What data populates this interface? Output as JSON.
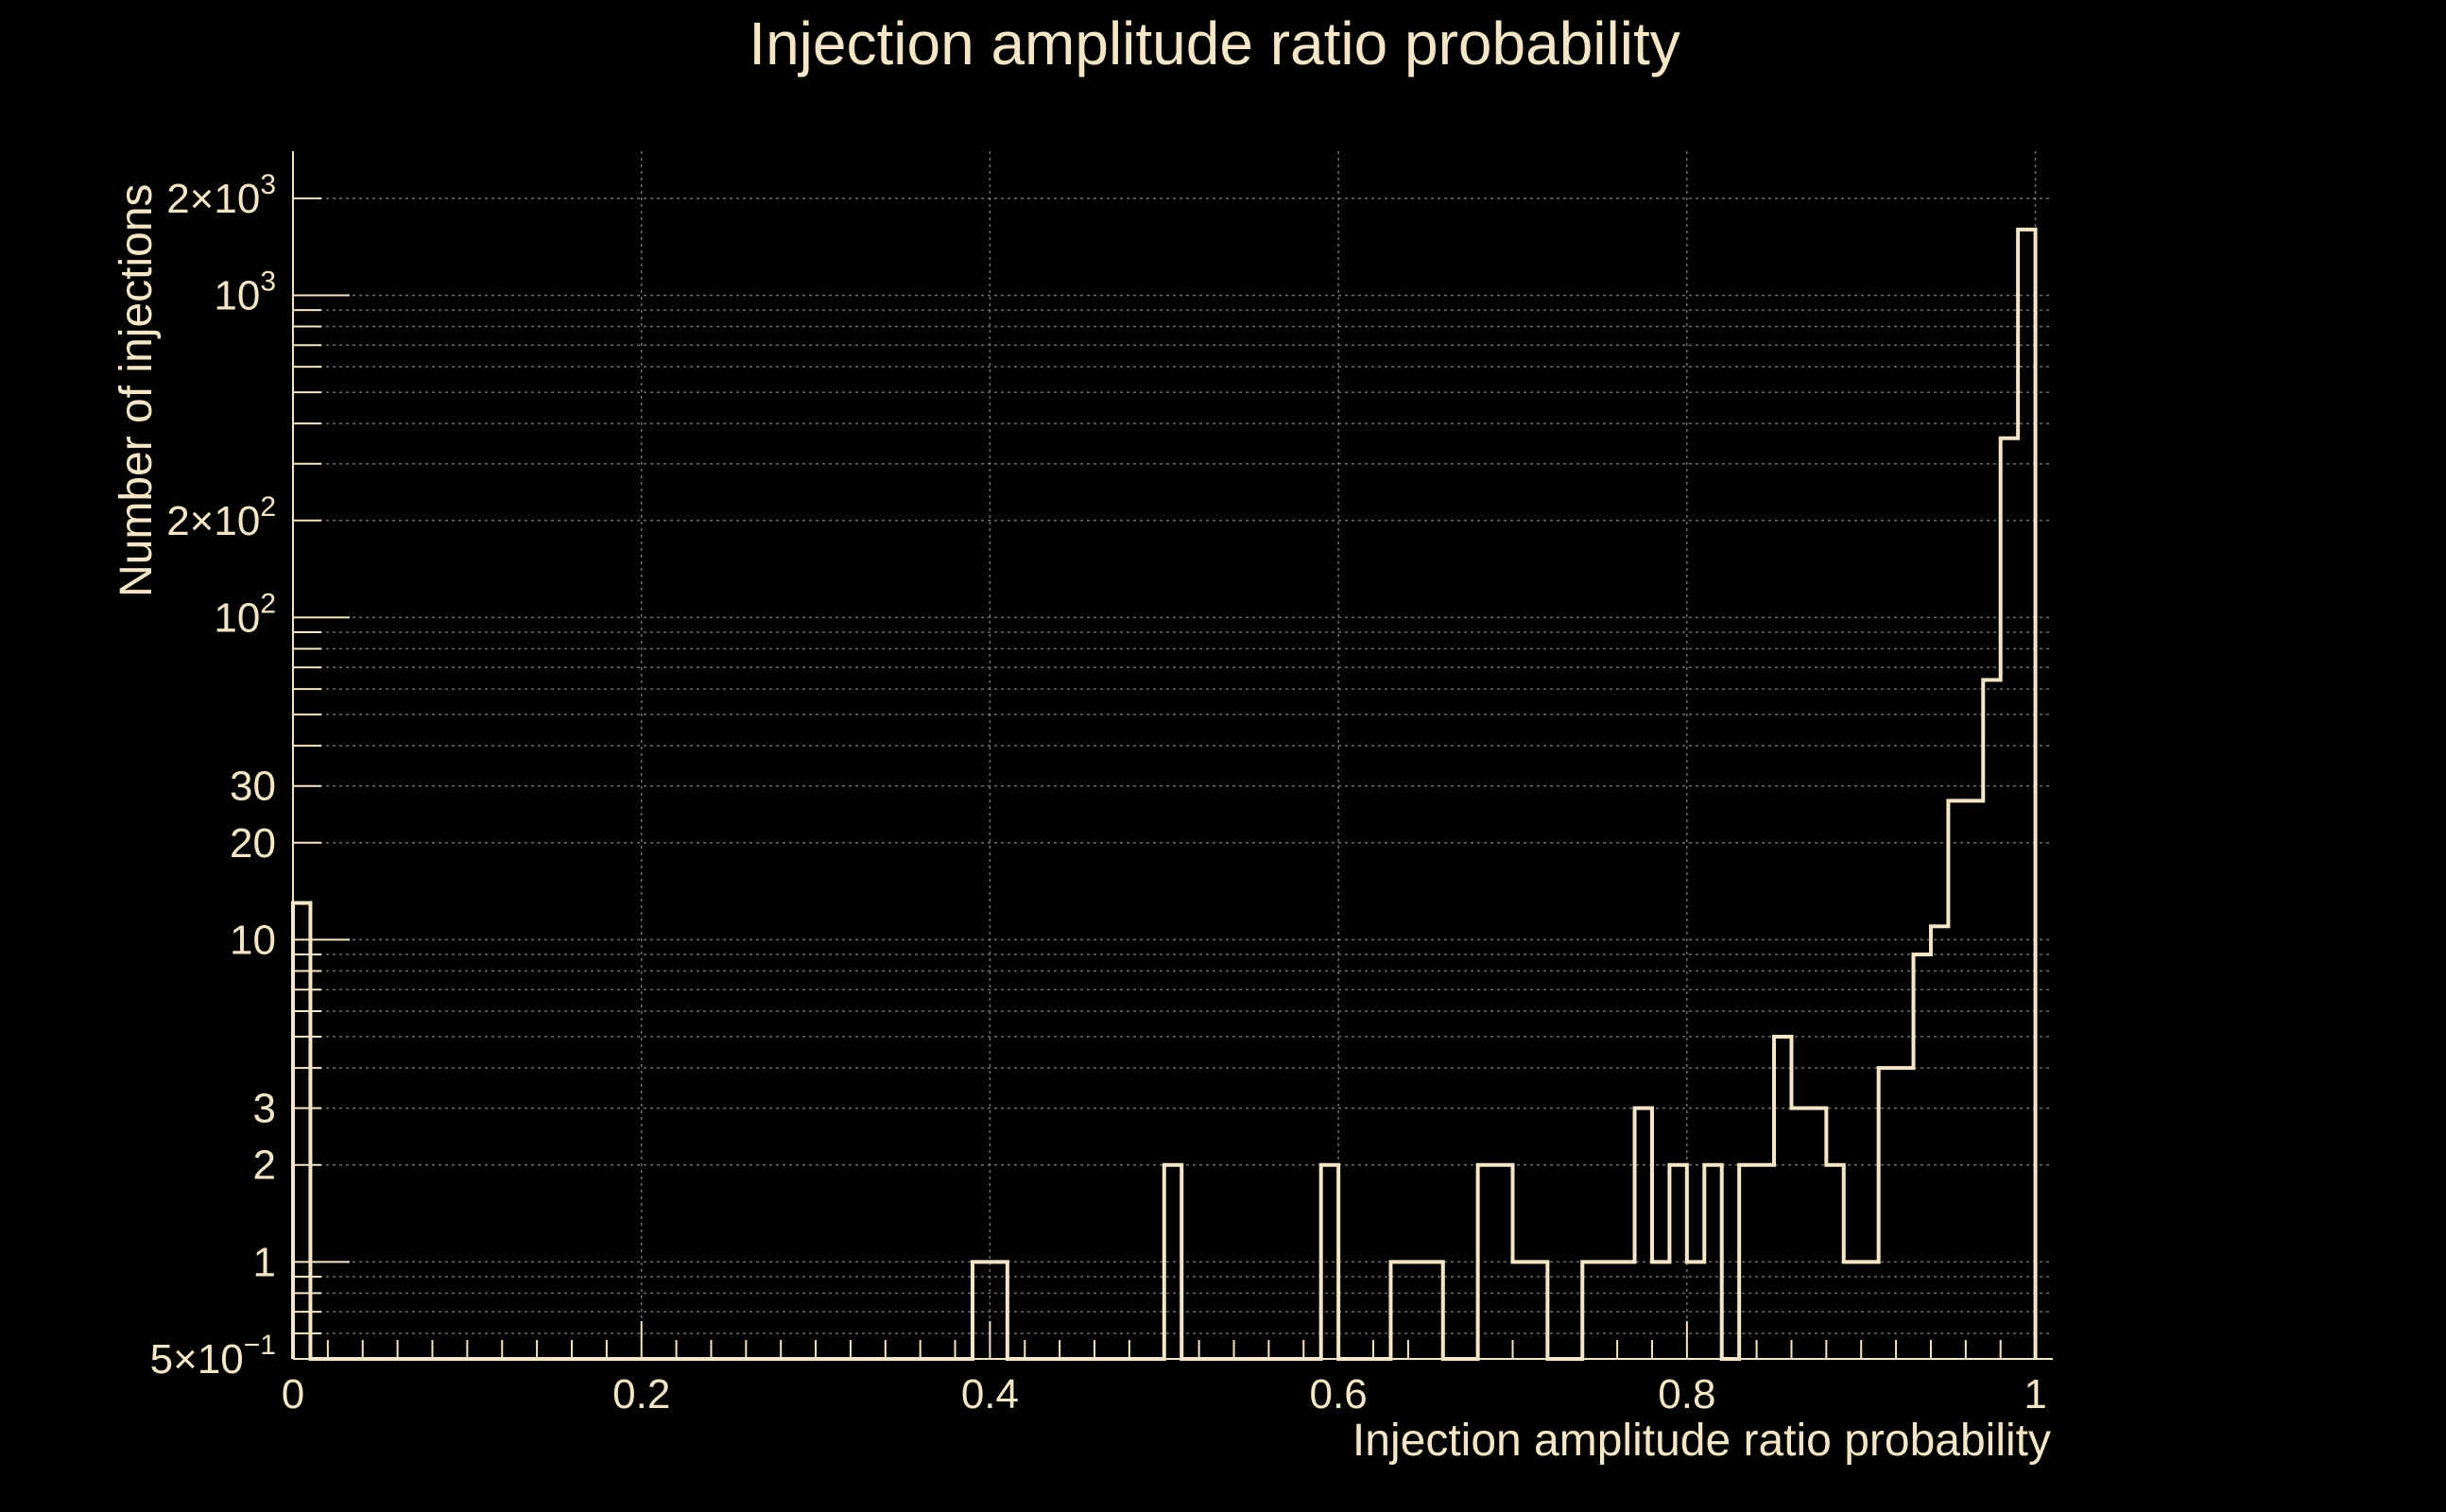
{
  "page": {
    "title": "Injection amplitude ratio probability"
  },
  "chart_data": {
    "type": "histogram",
    "title": "Injection amplitude ratio probability",
    "xlabel": "Injection amplitude ratio probability",
    "ylabel": "Number of injections",
    "xlim": [
      0,
      1.01
    ],
    "ylim": [
      0.5,
      2800
    ],
    "y_scale": "log",
    "grid": true,
    "bin_width": 0.01,
    "x_ticks": [
      {
        "value": 0,
        "label": "0"
      },
      {
        "value": 0.2,
        "label": "0.2"
      },
      {
        "value": 0.4,
        "label": "0.4"
      },
      {
        "value": 0.6,
        "label": "0.6"
      },
      {
        "value": 0.8,
        "label": "0.8"
      },
      {
        "value": 1,
        "label": "1"
      }
    ],
    "y_ticks": [
      {
        "value": 0.5,
        "mant": "5",
        "exp": "−1"
      },
      {
        "value": 1,
        "label": "1"
      },
      {
        "value": 2,
        "label": "2"
      },
      {
        "value": 3,
        "label": "3"
      },
      {
        "value": 10,
        "label": "10"
      },
      {
        "value": 20,
        "label": "20"
      },
      {
        "value": 30,
        "label": "30"
      },
      {
        "value": 100,
        "mant": "",
        "exp": "2"
      },
      {
        "value": 200,
        "mant": "2",
        "exp": "2"
      },
      {
        "value": 1000,
        "mant": "",
        "exp": "3"
      },
      {
        "value": 2000,
        "mant": "2",
        "exp": "3"
      }
    ],
    "bins": [
      {
        "x": 0.0,
        "count": 13
      },
      {
        "x": 0.39,
        "count": 1
      },
      {
        "x": 0.4,
        "count": 1
      },
      {
        "x": 0.5,
        "count": 2
      },
      {
        "x": 0.59,
        "count": 2
      },
      {
        "x": 0.63,
        "count": 1
      },
      {
        "x": 0.64,
        "count": 1
      },
      {
        "x": 0.65,
        "count": 1
      },
      {
        "x": 0.68,
        "count": 2
      },
      {
        "x": 0.69,
        "count": 2
      },
      {
        "x": 0.7,
        "count": 1
      },
      {
        "x": 0.71,
        "count": 1
      },
      {
        "x": 0.74,
        "count": 1
      },
      {
        "x": 0.75,
        "count": 1
      },
      {
        "x": 0.76,
        "count": 1
      },
      {
        "x": 0.77,
        "count": 3
      },
      {
        "x": 0.78,
        "count": 1
      },
      {
        "x": 0.79,
        "count": 2
      },
      {
        "x": 0.8,
        "count": 1
      },
      {
        "x": 0.81,
        "count": 2
      },
      {
        "x": 0.83,
        "count": 2
      },
      {
        "x": 0.84,
        "count": 2
      },
      {
        "x": 0.85,
        "count": 5
      },
      {
        "x": 0.86,
        "count": 3
      },
      {
        "x": 0.87,
        "count": 3
      },
      {
        "x": 0.88,
        "count": 2
      },
      {
        "x": 0.89,
        "count": 1
      },
      {
        "x": 0.9,
        "count": 1
      },
      {
        "x": 0.91,
        "count": 4
      },
      {
        "x": 0.92,
        "count": 4
      },
      {
        "x": 0.93,
        "count": 9
      },
      {
        "x": 0.94,
        "count": 11
      },
      {
        "x": 0.95,
        "count": 27
      },
      {
        "x": 0.96,
        "count": 27
      },
      {
        "x": 0.97,
        "count": 64
      },
      {
        "x": 0.98,
        "count": 360
      },
      {
        "x": 0.99,
        "count": 1600
      }
    ]
  }
}
